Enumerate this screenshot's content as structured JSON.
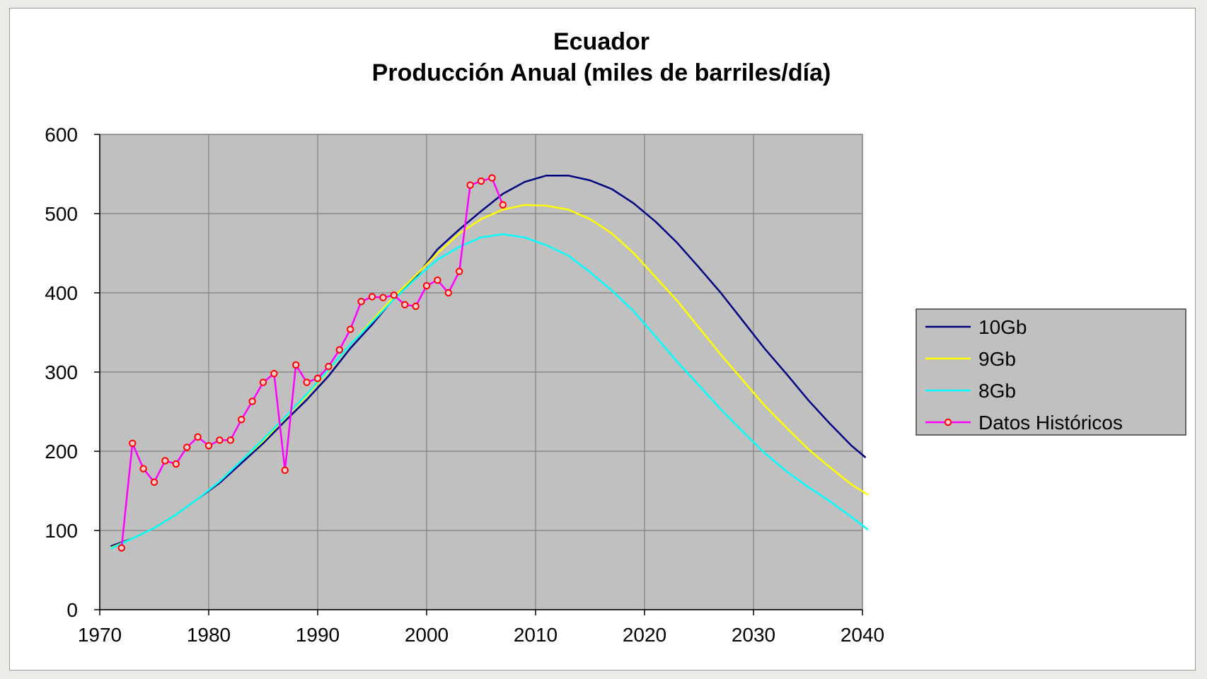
{
  "chart_data": {
    "type": "line",
    "title": "Ecuador",
    "subtitle": "Producción Anual (miles de barriles/día)",
    "xlabel": "",
    "ylabel": "",
    "xlim": [
      1970,
      2040
    ],
    "ylim": [
      0,
      600
    ],
    "x_ticks": [
      "1970",
      "1980",
      "1990",
      "2000",
      "2010",
      "2020",
      "2030",
      "2040"
    ],
    "y_ticks": [
      "0",
      "100",
      "200",
      "300",
      "400",
      "500",
      "600"
    ],
    "grid": true,
    "legend_position": "right",
    "plot_background": "#c0c0c0",
    "series": [
      {
        "name": "10Gb",
        "color": "#000080",
        "markers": false,
        "points": [
          [
            1971,
            80
          ],
          [
            1973,
            90
          ],
          [
            1975,
            103
          ],
          [
            1977,
            120
          ],
          [
            1979,
            140
          ],
          [
            1981,
            160
          ],
          [
            1983,
            185
          ],
          [
            1985,
            210
          ],
          [
            1987,
            238
          ],
          [
            1989,
            265
          ],
          [
            1991,
            295
          ],
          [
            1993,
            330
          ],
          [
            1995,
            360
          ],
          [
            1997,
            393
          ],
          [
            1999,
            420
          ],
          [
            2001,
            455
          ],
          [
            2003,
            480
          ],
          [
            2005,
            503
          ],
          [
            2007,
            525
          ],
          [
            2009,
            540
          ],
          [
            2011,
            548
          ],
          [
            2013,
            548
          ],
          [
            2015,
            542
          ],
          [
            2017,
            531
          ],
          [
            2019,
            513
          ],
          [
            2021,
            490
          ],
          [
            2023,
            463
          ],
          [
            2025,
            432
          ],
          [
            2027,
            400
          ],
          [
            2029,
            365
          ],
          [
            2031,
            330
          ],
          [
            2033,
            298
          ],
          [
            2035,
            265
          ],
          [
            2037,
            235
          ],
          [
            2039,
            207
          ],
          [
            2040.3,
            192
          ]
        ]
      },
      {
        "name": "9Gb",
        "color": "#ffff00",
        "markers": false,
        "points": [
          [
            1971,
            78
          ],
          [
            1973,
            90
          ],
          [
            1975,
            103
          ],
          [
            1977,
            120
          ],
          [
            1979,
            140
          ],
          [
            1981,
            162
          ],
          [
            1983,
            188
          ],
          [
            1985,
            213
          ],
          [
            1987,
            242
          ],
          [
            1989,
            270
          ],
          [
            1991,
            302
          ],
          [
            1993,
            335
          ],
          [
            1995,
            365
          ],
          [
            1997,
            395
          ],
          [
            1999,
            422
          ],
          [
            2001,
            450
          ],
          [
            2003,
            475
          ],
          [
            2005,
            493
          ],
          [
            2007,
            505
          ],
          [
            2009,
            511
          ],
          [
            2011,
            510
          ],
          [
            2013,
            505
          ],
          [
            2015,
            493
          ],
          [
            2017,
            475
          ],
          [
            2019,
            450
          ],
          [
            2021,
            420
          ],
          [
            2023,
            390
          ],
          [
            2025,
            356
          ],
          [
            2027,
            322
          ],
          [
            2029,
            290
          ],
          [
            2031,
            258
          ],
          [
            2033,
            230
          ],
          [
            2035,
            203
          ],
          [
            2037,
            180
          ],
          [
            2039,
            158
          ],
          [
            2040.5,
            145
          ]
        ]
      },
      {
        "name": "8Gb",
        "color": "#00ffff",
        "markers": false,
        "points": [
          [
            1971,
            77
          ],
          [
            1973,
            90
          ],
          [
            1975,
            103
          ],
          [
            1977,
            120
          ],
          [
            1979,
            140
          ],
          [
            1981,
            162
          ],
          [
            1983,
            188
          ],
          [
            1985,
            215
          ],
          [
            1987,
            243
          ],
          [
            1989,
            272
          ],
          [
            1991,
            303
          ],
          [
            1993,
            335
          ],
          [
            1995,
            363
          ],
          [
            1997,
            392
          ],
          [
            1999,
            418
          ],
          [
            2001,
            442
          ],
          [
            2003,
            458
          ],
          [
            2005,
            470
          ],
          [
            2007,
            474
          ],
          [
            2009,
            470
          ],
          [
            2011,
            460
          ],
          [
            2013,
            447
          ],
          [
            2015,
            426
          ],
          [
            2017,
            403
          ],
          [
            2019,
            377
          ],
          [
            2021,
            345
          ],
          [
            2023,
            313
          ],
          [
            2025,
            283
          ],
          [
            2027,
            253
          ],
          [
            2029,
            225
          ],
          [
            2031,
            198
          ],
          [
            2033,
            175
          ],
          [
            2035,
            155
          ],
          [
            2037,
            137
          ],
          [
            2039,
            117
          ],
          [
            2040.5,
            101
          ]
        ]
      },
      {
        "name": "Datos Históricos",
        "color": "#ff00ff",
        "markers": true,
        "marker_color": "#ff0000",
        "points": [
          [
            1972,
            78
          ],
          [
            1973,
            210
          ],
          [
            1974,
            178
          ],
          [
            1975,
            161
          ],
          [
            1976,
            188
          ],
          [
            1977,
            184
          ],
          [
            1978,
            205
          ],
          [
            1979,
            218
          ],
          [
            1980,
            207
          ],
          [
            1981,
            214
          ],
          [
            1982,
            214
          ],
          [
            1983,
            240
          ],
          [
            1984,
            263
          ],
          [
            1985,
            287
          ],
          [
            1986,
            298
          ],
          [
            1987,
            176
          ],
          [
            1988,
            309
          ],
          [
            1989,
            287
          ],
          [
            1990,
            292
          ],
          [
            1991,
            307
          ],
          [
            1992,
            328
          ],
          [
            1993,
            354
          ],
          [
            1994,
            389
          ],
          [
            1995,
            395
          ],
          [
            1996,
            394
          ],
          [
            1997,
            397
          ],
          [
            1998,
            385
          ],
          [
            1999,
            383
          ],
          [
            2000,
            409
          ],
          [
            2001,
            416
          ],
          [
            2002,
            400
          ],
          [
            2003,
            427
          ],
          [
            2004,
            536
          ],
          [
            2005,
            541
          ],
          [
            2006,
            545
          ],
          [
            2007,
            511
          ]
        ]
      }
    ]
  }
}
